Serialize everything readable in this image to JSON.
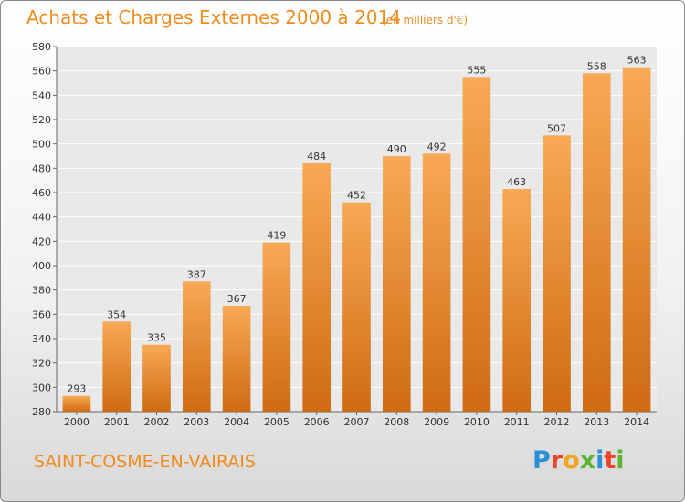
{
  "header": {
    "title": "Achats et Charges Externes 2000 à 2014",
    "subtitle": "(en milliers d'€)"
  },
  "footer": {
    "place": "SAINT-COSME-EN-VAIRAIS",
    "logo": {
      "text": "Proxiti",
      "icon": "proxiti-logo"
    }
  },
  "colors": {
    "bar_top": "#f8a955",
    "bar_bottom": "#cf6b12",
    "accent": "#f08c1e",
    "grid": "#ffffff",
    "plot_bg": "#e9e9e9"
  },
  "chart_data": {
    "type": "bar",
    "title": "Achats et Charges Externes 2000 à 2014",
    "subtitle": "(en milliers d'€)",
    "categories": [
      "2000",
      "2001",
      "2002",
      "2003",
      "2004",
      "2005",
      "2006",
      "2007",
      "2008",
      "2009",
      "2010",
      "2011",
      "2012",
      "2013",
      "2014"
    ],
    "values": [
      293,
      354,
      335,
      387,
      367,
      419,
      484,
      452,
      490,
      492,
      555,
      463,
      507,
      558,
      563
    ],
    "ylim": [
      280,
      580
    ],
    "yticks": [
      280,
      300,
      320,
      340,
      360,
      380,
      400,
      420,
      440,
      460,
      480,
      500,
      520,
      540,
      560,
      580
    ],
    "grid": true,
    "legend": "none"
  }
}
